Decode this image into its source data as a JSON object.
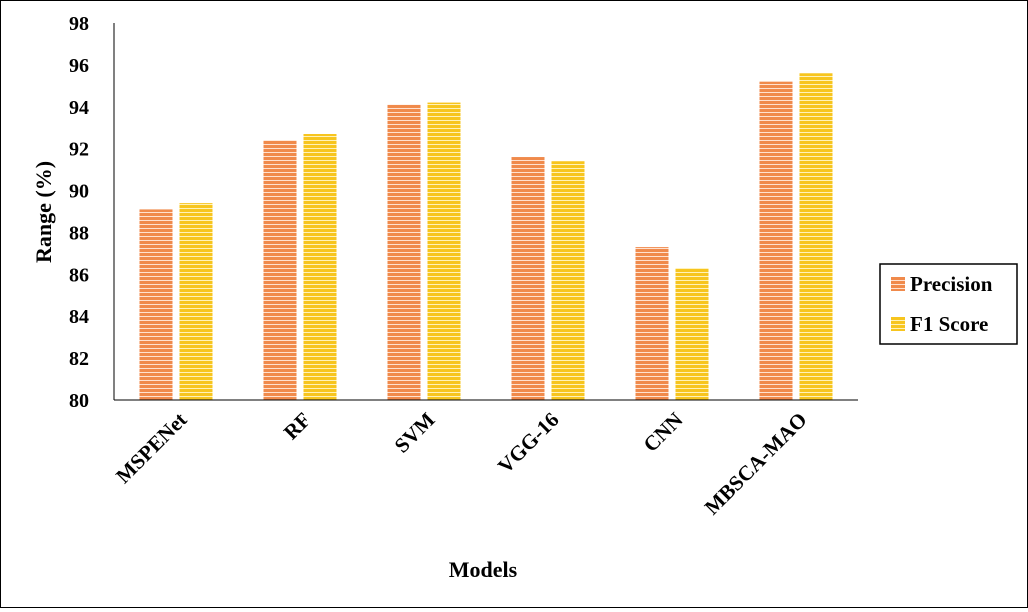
{
  "chart_data": {
    "type": "bar",
    "categories": [
      "MSPENet",
      "RF",
      "SVM",
      "VGG-16",
      "CNN",
      "MBSCA-MAO"
    ],
    "series": [
      {
        "name": "Precision",
        "values": [
          89.1,
          92.4,
          94.1,
          91.6,
          87.3,
          95.2
        ],
        "color": "#f08a4b"
      },
      {
        "name": "F1 Score",
        "values": [
          89.4,
          92.7,
          94.2,
          91.4,
          86.3,
          95.6
        ],
        "color": "#f7c51e"
      }
    ],
    "xlabel": "Models",
    "ylabel": "Range (%)",
    "ylim": [
      80,
      98
    ],
    "yticks": [
      80,
      82,
      84,
      86,
      88,
      90,
      92,
      94,
      96,
      98
    ],
    "grid": false,
    "legend": "right"
  }
}
